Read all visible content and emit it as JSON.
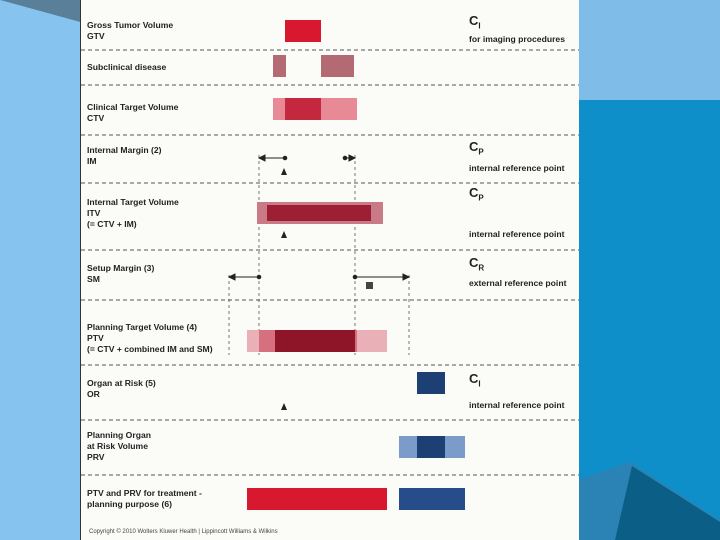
{
  "rows": [
    {
      "id": "gtv",
      "label": [
        "Gross Tumor Volume",
        "GTV"
      ],
      "symbol": "C",
      "sub": "I",
      "right": "for imaging procedures"
    },
    {
      "id": "sub",
      "label": [
        "Subclinical disease"
      ]
    },
    {
      "id": "ctv",
      "label": [
        "Clinical Target Volume",
        "CTV"
      ]
    },
    {
      "id": "im",
      "label": [
        "Internal Margin (2)",
        "IM"
      ],
      "symbol": "C",
      "sub": "P",
      "right": "internal reference point"
    },
    {
      "id": "itv",
      "label": [
        "Internal Target Volume",
        "ITV",
        "(= CTV + IM)"
      ],
      "symbol": "C",
      "sub": "P",
      "right": "internal reference point"
    },
    {
      "id": "sm",
      "label": [
        "Setup Margin (3)",
        "SM"
      ],
      "symbol": "C",
      "sub": "R",
      "right": "external reference point"
    },
    {
      "id": "ptv",
      "label": [
        "Planning Target Volume (4)",
        "PTV",
        "(= CTV + combined IM and SM)"
      ]
    },
    {
      "id": "oar",
      "label": [
        "Organ at Risk (5)",
        "OR"
      ],
      "symbol": "C",
      "sub": "I",
      "right": "internal reference point"
    },
    {
      "id": "prv",
      "label": [
        "Planning Organ",
        "at Risk Volume",
        "PRV"
      ]
    },
    {
      "id": "final",
      "label": [
        "PTV and PRV for  treatment -",
        "planning purpose (6)"
      ]
    }
  ],
  "copyright": "Copyright © 2010 Wolters Kluwer Health | Lippincott Williams & Wilkins",
  "colors": {
    "gtv": "#d8182e",
    "subclinical": "#b46a72",
    "ctv_core": "#c4283e",
    "ctv_margin": "#e88a96",
    "itv": "#9c1f34",
    "ptv_core": "#8e1528",
    "ptv_mid": "#d6707e",
    "ptv_outer": "#eab0b8",
    "organ": "#1c3f74",
    "organ_margin": "#7b9bc8",
    "slide_bg": "#7fbde8",
    "slide_dark": "#0f6f9e"
  }
}
